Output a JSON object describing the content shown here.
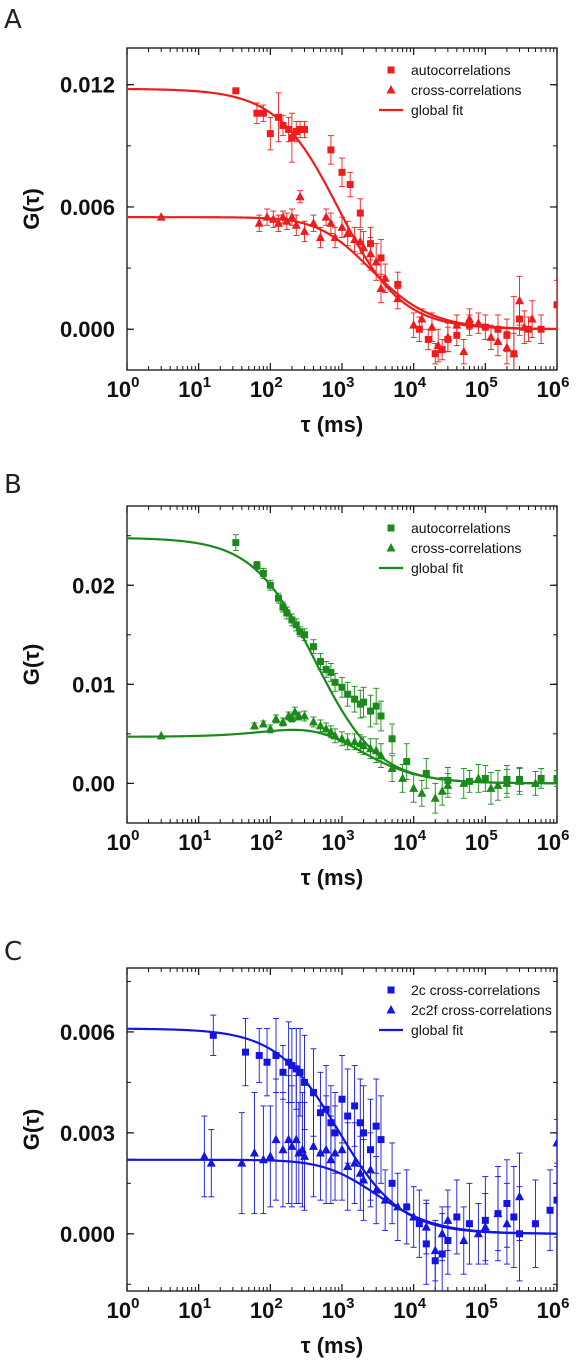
{
  "chart_data": [
    {
      "panel": "A",
      "type": "scatter",
      "color": "#ee1c1c",
      "xscale": "log",
      "xlim": [
        1,
        1000000
      ],
      "ylim": [
        -0.002,
        0.0138
      ],
      "xlabel": "τ (ms)",
      "ylabel": "G(τ)",
      "yticks": [
        0.0,
        0.006,
        0.012
      ],
      "ytick_labels": [
        "0.000",
        "0.006",
        "0.012"
      ],
      "xtick_labels": [
        "10^0",
        "10^1",
        "10^2",
        "10^3",
        "10^4",
        "10^5",
        "10^6"
      ],
      "legend_position": "top-right",
      "series": [
        {
          "name": "autocorrelations",
          "marker": "square",
          "x": [
            33,
            65,
            80,
            100,
            130,
            150,
            180,
            200,
            230,
            260,
            300,
            700,
            1000,
            1300,
            1800,
            2500,
            3500,
            6000,
            12000,
            16000,
            20000,
            25000,
            30000,
            40000,
            60000,
            100000,
            150000,
            200000,
            250000,
            300000,
            400000,
            600000,
            1000000
          ],
          "y": [
            0.0117,
            0.0106,
            0.0106,
            0.0096,
            0.0104,
            0.01,
            0.0098,
            0.0094,
            0.0097,
            0.0098,
            0.0098,
            0.0088,
            0.0077,
            0.0071,
            0.0057,
            0.0042,
            0.0035,
            0.0022,
            0.0,
            -0.0005,
            -0.0012,
            -0.001,
            -0.0005,
            -0.0003,
            0.0002,
            0.0001,
            0.0,
            -0.0003,
            -0.0012,
            0.0005,
            0.0,
            0.0,
            0.0012
          ],
          "yerr": [
            0.0,
            0.0005,
            0.0004,
            0.0008,
            0.0012,
            0.0005,
            0.0006,
            0.0012,
            0.0005,
            0.0004,
            0.0004,
            0.0007,
            0.0007,
            0.0006,
            0.0007,
            0.0008,
            0.0009,
            0.0006,
            0.0006,
            0.0005,
            0.0005,
            0.0005,
            0.0006,
            0.0005,
            0.0005,
            0.0006,
            0.0007,
            0.0008,
            0.001,
            0.0008,
            0.0006,
            0.0007,
            0.0012
          ]
        },
        {
          "name": "cross-correlations",
          "marker": "triangle",
          "x": [
            3,
            70,
            90,
            110,
            130,
            150,
            170,
            200,
            230,
            260,
            300,
            400,
            500,
            600,
            700,
            800,
            1000,
            1200,
            1500,
            1800,
            2000,
            2500,
            3000,
            3500,
            4000,
            6000,
            10000,
            13000,
            18000,
            22000,
            30000,
            40000,
            50000,
            60000,
            80000,
            120000,
            150000,
            200000,
            250000,
            300000,
            350000,
            450000
          ],
          "y": [
            0.0055,
            0.0052,
            0.0055,
            0.0054,
            0.0052,
            0.0055,
            0.0053,
            0.0055,
            0.0051,
            0.0065,
            0.0048,
            0.0052,
            0.0045,
            0.0055,
            0.0052,
            0.0045,
            0.005,
            0.0047,
            0.0044,
            0.0043,
            0.004,
            0.0037,
            0.0033,
            0.002,
            0.0025,
            0.0015,
            0.0002,
            0.0005,
            0.0001,
            -0.0008,
            -0.0004,
            0.0002,
            -0.0011,
            0.0005,
            0.0003,
            -0.0004,
            -0.0006,
            -0.0009,
            -0.0012,
            0.0014,
            0.0001,
            0.0005
          ],
          "yerr": [
            0.0,
            0.0004,
            0.0004,
            0.0004,
            0.0004,
            0.0003,
            0.0004,
            0.0004,
            0.0005,
            0.0003,
            0.0005,
            0.0004,
            0.0005,
            0.0004,
            0.0005,
            0.0005,
            0.0005,
            0.0006,
            0.0006,
            0.0006,
            0.0008,
            0.0008,
            0.0009,
            0.0007,
            0.0007,
            0.0005,
            0.0006,
            0.0005,
            0.0007,
            0.0008,
            0.0007,
            0.0005,
            0.0006,
            0.0005,
            0.0005,
            0.0006,
            0.0007,
            0.0008,
            0.0028,
            0.0012,
            0.0008,
            0.0009
          ]
        },
        {
          "name": "global fit",
          "marker": "line",
          "curves": [
            {
              "amplitude": 0.0118,
              "tau_d": 900
            },
            {
              "amplitude": 0.0055,
              "tau_d": 2200,
              "bump": 0.0009,
              "bump_tau": 400
            }
          ]
        }
      ]
    },
    {
      "panel": "B",
      "type": "scatter",
      "color": "#1a8a1a",
      "xscale": "log",
      "xlim": [
        1,
        1000000
      ],
      "ylim": [
        -0.004,
        0.028
      ],
      "xlabel": "τ (ms)",
      "ylabel": "G(τ)",
      "yticks": [
        0.0,
        0.01,
        0.02
      ],
      "ytick_labels": [
        "0.00",
        "0.01",
        "0.02"
      ],
      "xtick_labels": [
        "10^0",
        "10^1",
        "10^2",
        "10^3",
        "10^4",
        "10^5",
        "10^6"
      ],
      "legend_position": "top-right",
      "series": [
        {
          "name": "autocorrelations",
          "marker": "square",
          "x": [
            33,
            65,
            80,
            100,
            130,
            150,
            170,
            200,
            230,
            260,
            300,
            400,
            500,
            600,
            700,
            800,
            1000,
            1200,
            1500,
            1800,
            2000,
            2500,
            3000,
            3500,
            5000,
            8000,
            15000,
            30000,
            60000,
            100000,
            200000,
            300000,
            600000,
            1000000
          ],
          "y": [
            0.0243,
            0.022,
            0.0212,
            0.02,
            0.0187,
            0.0178,
            0.0172,
            0.0165,
            0.016,
            0.0153,
            0.015,
            0.0138,
            0.0123,
            0.0115,
            0.0112,
            0.0102,
            0.0097,
            0.009,
            0.0085,
            0.008,
            0.0082,
            0.0073,
            0.0078,
            0.0068,
            0.0045,
            0.0022,
            0.001,
            0.0003,
            0.0002,
            0.0005,
            0.0004,
            0.0004,
            0.0005,
            0.0005
          ],
          "yerr": [
            0.0008,
            0.0004,
            0.0005,
            0.0005,
            0.0005,
            0.0005,
            0.0006,
            0.0006,
            0.0006,
            0.0005,
            0.0006,
            0.0007,
            0.0008,
            0.0008,
            0.0009,
            0.0009,
            0.001,
            0.0012,
            0.0013,
            0.0014,
            0.0015,
            0.0016,
            0.0018,
            0.0015,
            0.0015,
            0.0018,
            0.0015,
            0.0013,
            0.0011,
            0.0013,
            0.0014,
            0.0012,
            0.001,
            0.0008
          ]
        },
        {
          "name": "cross-correlations",
          "marker": "triangle",
          "x": [
            3,
            60,
            80,
            100,
            120,
            150,
            180,
            200,
            220,
            250,
            300,
            400,
            500,
            600,
            700,
            800,
            1000,
            1200,
            1500,
            1800,
            2000,
            2500,
            3000,
            3500,
            5000,
            7000,
            10000,
            13000,
            20000,
            25000,
            30000,
            50000,
            80000,
            120000,
            150000,
            200000,
            300000,
            500000
          ],
          "y": [
            0.0048,
            0.0058,
            0.006,
            0.0055,
            0.0065,
            0.0062,
            0.0068,
            0.0066,
            0.0072,
            0.0068,
            0.0068,
            0.0062,
            0.0058,
            0.0055,
            0.0052,
            0.0048,
            0.0045,
            0.0042,
            0.0042,
            0.004,
            0.0038,
            0.0035,
            0.0033,
            0.0028,
            0.0015,
            0.0005,
            -0.0005,
            -0.001,
            -0.0015,
            -0.0008,
            -0.0002,
            0.0,
            0.0005,
            -0.0005,
            -0.0002,
            0.0,
            0.0002,
            0.0
          ],
          "yerr": [
            0.0,
            0.0003,
            0.0003,
            0.0004,
            0.0004,
            0.0004,
            0.0004,
            0.0004,
            0.0005,
            0.0004,
            0.0005,
            0.0005,
            0.0006,
            0.0006,
            0.0006,
            0.0007,
            0.0007,
            0.0008,
            0.0008,
            0.0009,
            0.0009,
            0.001,
            0.0012,
            0.0012,
            0.0013,
            0.0014,
            0.0014,
            0.0013,
            0.0015,
            0.0014,
            0.0012,
            0.0015,
            0.0014,
            0.0016,
            0.0015,
            0.0014,
            0.0013,
            0.0012
          ]
        },
        {
          "name": "global fit",
          "marker": "line",
          "curves": [
            {
              "amplitude": 0.0248,
              "tau_d": 420
            },
            {
              "amplitude": 0.0047,
              "tau_d": 1200,
              "bump": 0.0035,
              "bump_tau": 250
            }
          ]
        }
      ]
    },
    {
      "panel": "C",
      "type": "scatter",
      "color": "#1515e0",
      "xscale": "log",
      "xlim": [
        1,
        1000000
      ],
      "ylim": [
        -0.0017,
        0.0079
      ],
      "xlabel": "τ (ms)",
      "ylabel": "G(τ)",
      "yticks": [
        0.0,
        0.003,
        0.006
      ],
      "ytick_labels": [
        "0.000",
        "0.003",
        "0.006"
      ],
      "xtick_labels": [
        "10^0",
        "10^1",
        "10^2",
        "10^3",
        "10^4",
        "10^5",
        "10^6"
      ],
      "legend_position": "top-right",
      "series": [
        {
          "name": "2c cross-correlations",
          "marker": "square",
          "x": [
            16,
            45,
            70,
            90,
            120,
            150,
            180,
            200,
            230,
            260,
            300,
            400,
            500,
            600,
            700,
            800,
            1000,
            1200,
            1500,
            1800,
            2000,
            2500,
            3000,
            3500,
            5000,
            8000,
            12000,
            15000,
            20000,
            25000,
            30000,
            40000,
            60000,
            100000,
            150000,
            200000,
            250000,
            300000,
            500000,
            800000,
            1000000
          ],
          "y": [
            0.0059,
            0.0054,
            0.0053,
            0.0051,
            0.0053,
            0.0048,
            0.0051,
            0.005,
            0.0049,
            0.0048,
            0.0045,
            0.0042,
            0.0036,
            0.0037,
            0.0033,
            0.003,
            0.004,
            0.0035,
            0.0038,
            0.0033,
            0.003,
            0.0025,
            0.0032,
            0.0028,
            0.0015,
            0.0008,
            0.0003,
            -0.0003,
            -0.0008,
            -0.0006,
            -0.0002,
            0.0005,
            0.0003,
            0.0004,
            0.0006,
            0.0009,
            0.0005,
            0.0,
            0.0003,
            0.0007,
            0.001
          ],
          "yerr": [
            0.0006,
            0.001,
            0.0008,
            0.001,
            0.0011,
            0.0008,
            0.0012,
            0.0011,
            0.0012,
            0.0013,
            0.0014,
            0.0013,
            0.0012,
            0.0013,
            0.0011,
            0.0012,
            0.0013,
            0.0014,
            0.0012,
            0.0013,
            0.0014,
            0.0015,
            0.0014,
            0.0013,
            0.0012,
            0.0011,
            0.001,
            0.0012,
            0.0011,
            0.0012,
            0.001,
            0.0011,
            0.0012,
            0.0013,
            0.0014,
            0.0013,
            0.0015,
            0.0014,
            0.0013,
            0.0012,
            0.0011
          ]
        },
        {
          "name": "2c2f cross-correlations",
          "marker": "triangle",
          "x": [
            12,
            15,
            40,
            60,
            80,
            100,
            120,
            150,
            180,
            200,
            230,
            250,
            280,
            300,
            400,
            500,
            600,
            700,
            800,
            1000,
            1200,
            1500,
            1800,
            2000,
            2500,
            3000,
            4000,
            6000,
            10000,
            15000,
            20000,
            25000,
            30000,
            50000,
            80000,
            100000,
            150000,
            200000,
            300000,
            1000000
          ],
          "y": [
            0.0023,
            0.0021,
            0.0021,
            0.0024,
            0.0022,
            0.0023,
            0.0028,
            0.0025,
            0.0028,
            0.0026,
            0.0028,
            0.0024,
            0.0025,
            0.0023,
            0.0026,
            0.0024,
            0.0025,
            0.0022,
            0.0024,
            0.0025,
            0.002,
            0.0021,
            0.0018,
            0.0016,
            0.0019,
            0.0013,
            0.001,
            0.0008,
            0.0005,
            0.0002,
            -0.0005,
            0.0,
            0.0004,
            -0.0002,
            0.0,
            0.0002,
            0.0006,
            0.0003,
            0.0011,
            0.0027
          ],
          "yerr": [
            0.0012,
            0.001,
            0.0015,
            0.0018,
            0.0016,
            0.0015,
            0.0018,
            0.0017,
            0.0019,
            0.0018,
            0.0019,
            0.0015,
            0.0017,
            0.0016,
            0.0015,
            0.0014,
            0.0016,
            0.0013,
            0.0014,
            0.0015,
            0.0013,
            0.0012,
            0.0011,
            0.0012,
            0.0011,
            0.001,
            0.0009,
            0.001,
            0.0009,
            0.0008,
            0.0009,
            0.0008,
            0.0009,
            0.001,
            0.0009,
            0.001,
            0.0011,
            0.0012,
            0.0013,
            0.0007
          ]
        },
        {
          "name": "global fit",
          "marker": "line",
          "curves": [
            {
              "amplitude": 0.0061,
              "tau_d": 900
            },
            {
              "amplitude": 0.0022,
              "tau_d": 2500,
              "bump": 0.0004,
              "bump_tau": 500
            }
          ]
        }
      ]
    }
  ]
}
